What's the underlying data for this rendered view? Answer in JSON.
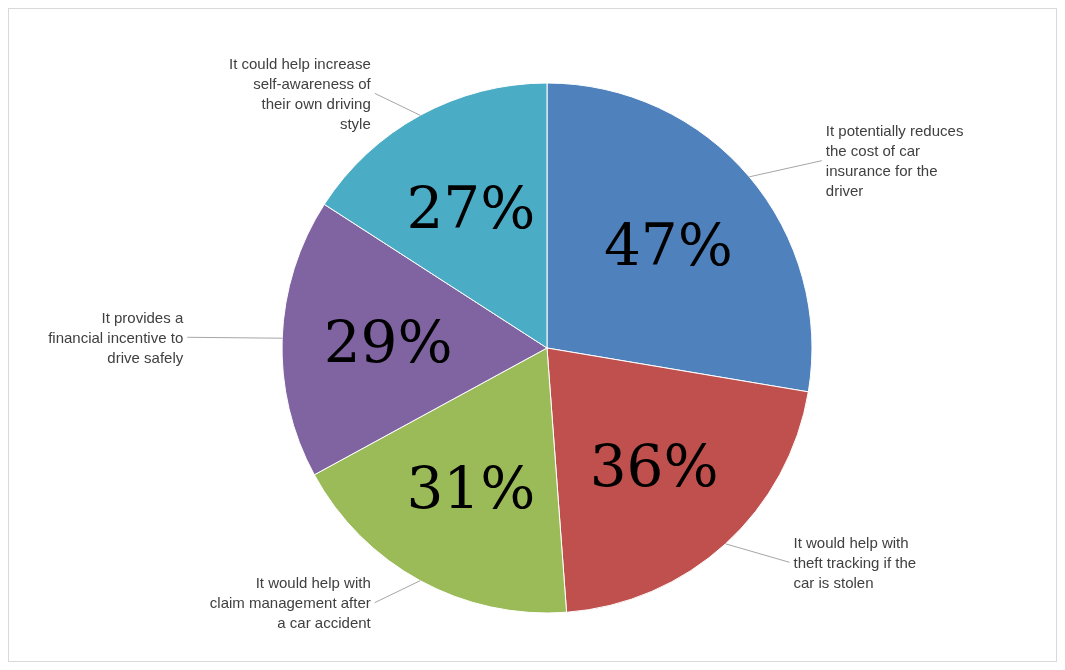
{
  "chart_data": {
    "type": "pie",
    "categories": [
      "It potentially reduces the cost of car insurance for the driver",
      "It would help with theft tracking if the car is stolen",
      "It would help with claim management after a car accident",
      "It provides a financial incentive to drive safely",
      "It could help increase self-awareness of their own driving style"
    ],
    "values": [
      47,
      36,
      31,
      29,
      27
    ],
    "value_labels": [
      "47%",
      "36%",
      "31%",
      "29%",
      "27%"
    ],
    "colors": [
      "#4f81bd",
      "#c0504d",
      "#9bbb59",
      "#8064a2",
      "#4bacc6"
    ]
  }
}
